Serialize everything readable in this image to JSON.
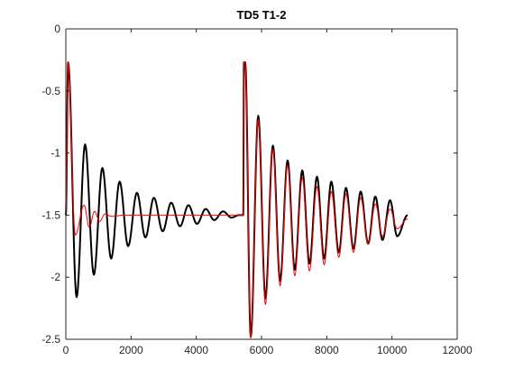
{
  "chart_data": {
    "type": "line",
    "title": "TD5 T1-2",
    "xlabel": "",
    "ylabel": "",
    "xlim": [
      0,
      12000
    ],
    "ylim": [
      -2.5,
      0
    ],
    "x_ticks": [
      0,
      2000,
      4000,
      6000,
      8000,
      10000,
      12000
    ],
    "x_tick_labels": [
      "0",
      "2000",
      "4000",
      "6000",
      "8000",
      "10000",
      "12000"
    ],
    "y_ticks": [
      0,
      -0.5,
      -1,
      -1.5,
      -2,
      -2.5
    ],
    "y_tick_labels": [
      "0",
      "-0.5",
      "-1",
      "-1.5",
      "-2",
      "-2.5"
    ],
    "grid": false,
    "legend": "none",
    "series": [
      {
        "color": "#000000",
        "line_width": 2,
        "x": [
          0,
          70,
          330,
          590,
          860,
          1120,
          1390,
          1650,
          1910,
          2180,
          2440,
          2700,
          2970,
          3230,
          3500,
          3760,
          4020,
          4290,
          4550,
          4820,
          5080,
          5300,
          5440,
          5460,
          5500,
          5670,
          5900,
          6120,
          6350,
          6570,
          6800,
          7020,
          7250,
          7470,
          7700,
          7920,
          8140,
          8370,
          8590,
          8820,
          9040,
          9270,
          9490,
          9710,
          9940,
          10160,
          10480
        ],
        "y": [
          -1.5,
          -0.27,
          -2.16,
          -0.93,
          -1.98,
          -1.12,
          -1.85,
          -1.23,
          -1.75,
          -1.32,
          -1.68,
          -1.36,
          -1.63,
          -1.4,
          -1.59,
          -1.42,
          -1.57,
          -1.45,
          -1.54,
          -1.47,
          -1.52,
          -1.5,
          -1.5,
          -0.27,
          -0.27,
          -2.48,
          -0.7,
          -2.17,
          -0.94,
          -2.03,
          -1.06,
          -1.94,
          -1.14,
          -1.89,
          -1.19,
          -1.85,
          -1.23,
          -1.8,
          -1.28,
          -1.77,
          -1.31,
          -1.73,
          -1.35,
          -1.7,
          -1.38,
          -1.67,
          -1.5
        ]
      },
      {
        "color": "#ff0000",
        "line_width": 1,
        "x": [
          0,
          70,
          290,
          560,
          720,
          880,
          1040,
          1200,
          1400,
          1800,
          2400,
          3200,
          4000,
          5000,
          5440,
          5460,
          5500,
          5670,
          5900,
          6120,
          6350,
          6570,
          6800,
          7020,
          7250,
          7470,
          7700,
          7920,
          8140,
          8370,
          8590,
          8820,
          9040,
          9270,
          9490,
          9710,
          9940,
          10160,
          10480
        ],
        "y": [
          -1.5,
          -0.27,
          -1.66,
          -1.42,
          -1.6,
          -1.47,
          -1.55,
          -1.49,
          -1.51,
          -1.5,
          -1.5,
          -1.5,
          -1.5,
          -1.5,
          -1.5,
          -0.27,
          -0.27,
          -2.49,
          -0.73,
          -2.22,
          -0.97,
          -2.07,
          -1.1,
          -1.99,
          -1.2,
          -1.95,
          -1.27,
          -1.9,
          -1.31,
          -1.84,
          -1.33,
          -1.8,
          -1.36,
          -1.73,
          -1.41,
          -1.67,
          -1.45,
          -1.61,
          -1.53
        ]
      }
    ]
  }
}
